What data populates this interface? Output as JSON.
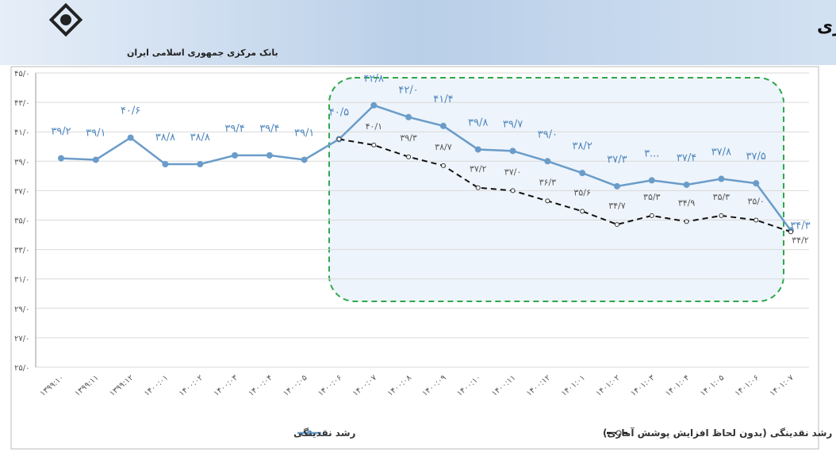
{
  "header": {
    "title": "رشد نقدینگی و افزایش شمول آماری",
    "bank": "بانک مرکزی جمهوری اسلامی ایران"
  },
  "chart_data": {
    "type": "line",
    "categories": [
      "۱۳۹۹:۱۰",
      "۱۳۹۹:۱۱",
      "۱۳۹۹:۱۲",
      "۱۴۰۰:۰۱",
      "۱۴۰۰:۰۲",
      "۱۴۰۰:۰۳",
      "۱۴۰۰:۰۴",
      "۱۴۰۰:۰۵",
      "۱۴۰۰:۰۶",
      "۱۴۰۰:۰۷",
      "۱۴۰۰:۰۸",
      "۱۴۰۰:۰۹",
      "۱۴۰۰:۱۰",
      "۱۴۰۰:۱۱",
      "۱۴۰۰:۱۲",
      "۱۴۰۱:۰۱",
      "۱۴۰۱:۰۲",
      "۱۴۰۱:۰۳",
      "۱۴۰۱:۰۴",
      "۱۴۰۱:۰۵",
      "۱۴۰۱:۰۶",
      "۱۴۰۱:۰۷"
    ],
    "series": [
      {
        "name": "رشد نقدینگی",
        "color": "#6a9cc9",
        "dash": false,
        "values": [
          39.2,
          39.1,
          40.6,
          38.8,
          38.8,
          39.4,
          39.4,
          39.1,
          40.5,
          42.8,
          42.0,
          41.4,
          39.8,
          39.7,
          39.0,
          38.2,
          37.3,
          37.7,
          37.4,
          37.8,
          37.5,
          34.3
        ],
        "value_labels": [
          "۳۹/۲",
          "۳۹/۱",
          "۴۰/۶",
          "۳۸/۸",
          "۳۸/۸",
          "۳۹/۴",
          "۳۹/۴",
          "۳۹/۱",
          "۴۰/۵",
          "۴۲/۸",
          "۴۲/۰",
          "۴۱/۴",
          "۳۹/۸",
          "۳۹/۷",
          "۳۹/۰",
          "۳۸/۲",
          "۳۷/۳",
          "۳...",
          "۳۷/۴",
          "۳۷/۸",
          "۳۷/۵",
          "۳۴/۳"
        ]
      },
      {
        "name": "رشد نقدینگی (بدون لحاظ افزایش پوشش آماری)",
        "color": "#111111",
        "dash": true,
        "values": [
          null,
          null,
          null,
          null,
          null,
          null,
          null,
          null,
          40.5,
          40.1,
          39.3,
          38.7,
          37.2,
          37.0,
          36.3,
          35.6,
          34.7,
          35.3,
          34.9,
          35.3,
          35.0,
          34.2
        ],
        "value_labels": [
          null,
          null,
          null,
          null,
          null,
          null,
          null,
          null,
          null,
          "۴۰/۱",
          "۳۹/۳",
          "۳۸/۷",
          "۳۷/۲",
          "۳۷/۰",
          "۳۶/۳",
          "۳۵/۶",
          "۳۴/۷",
          "۳۵/۳",
          "۳۴/۹",
          "۳۵/۳",
          "۳۵/۰",
          "۳۴/۲"
        ]
      }
    ],
    "ylim": [
      25,
      45
    ],
    "yticks": [
      {
        "value": 25,
        "label": "۲۵/۰"
      },
      {
        "value": 27,
        "label": "۲۷/۰"
      },
      {
        "value": 29,
        "label": "۲۹/۰"
      },
      {
        "value": 31,
        "label": "۳۱/۰"
      },
      {
        "value": 33,
        "label": "۳۳/۰"
      },
      {
        "value": 35,
        "label": "۳۵/۰"
      },
      {
        "value": 37,
        "label": "۳۷/۰"
      },
      {
        "value": 39,
        "label": "۳۹/۰"
      },
      {
        "value": 41,
        "label": "۴۱/۰"
      },
      {
        "value": 43,
        "label": "۴۳/۰"
      },
      {
        "value": 45,
        "label": "۴۵/۰"
      }
    ],
    "grid": true,
    "legend": "bottom"
  }
}
